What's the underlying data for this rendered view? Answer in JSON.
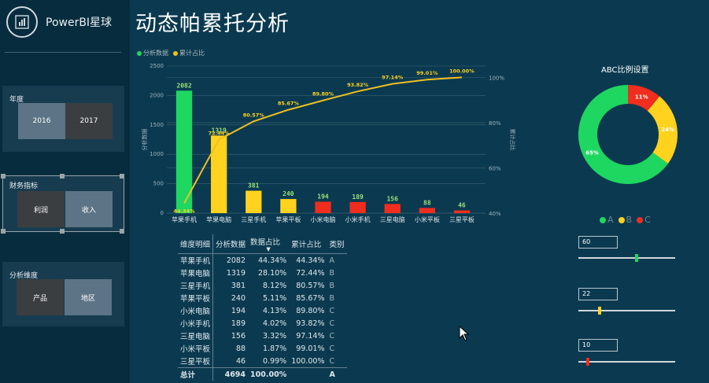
{
  "brand": "PowerBI星球",
  "page_title": "动态帕累托分析",
  "slicers": {
    "year": {
      "title": "年度",
      "options": [
        "2016",
        "2017"
      ]
    },
    "finance": {
      "title": "财务指标",
      "options": [
        "利润",
        "收入"
      ]
    },
    "dimension": {
      "title": "分析维度",
      "options": [
        "产品",
        "地区"
      ]
    }
  },
  "legend": {
    "series1": "分析数据",
    "series2": "累计占比"
  },
  "colors": {
    "A": "#1ed760",
    "B": "#ffd21e",
    "C": "#f02d1e",
    "line": "#f0c020",
    "bg": "#0b3a50"
  },
  "chart_data": {
    "type": "bar+line",
    "categories": [
      "苹果手机",
      "苹果电脑",
      "三星手机",
      "苹果平板",
      "小米电脑",
      "小米手机",
      "三星电脑",
      "小米平板",
      "三星平板"
    ],
    "series": [
      {
        "name": "分析数据",
        "values": [
          2082,
          1319,
          381,
          240,
          194,
          189,
          156,
          88,
          46
        ],
        "axis": "left"
      },
      {
        "name": "累计占比",
        "values": [
          44.34,
          72.44,
          80.57,
          85.67,
          89.8,
          93.82,
          97.14,
          99.01,
          100.0
        ],
        "axis": "right"
      }
    ],
    "classes": [
      "A",
      "B",
      "B",
      "B",
      "C",
      "C",
      "C",
      "C",
      "C"
    ],
    "ylabel": "分析数据",
    "y2label": "累计占比",
    "ylim": [
      0,
      2500
    ],
    "yticks": [
      0,
      500,
      1000,
      1500,
      2000,
      2500
    ],
    "y2lim": [
      40,
      105
    ],
    "y2ticks": [
      "40%",
      "60%",
      "80%",
      "100%"
    ],
    "grid": true
  },
  "table": {
    "headers": [
      "维度明细",
      "分析数据",
      "数据占比",
      "累计占比",
      "类别"
    ],
    "rows": [
      [
        "苹果手机",
        "2082",
        "44.34%",
        "44.34%",
        "A"
      ],
      [
        "苹果电脑",
        "1319",
        "28.10%",
        "72.44%",
        "B"
      ],
      [
        "三星手机",
        "381",
        "8.12%",
        "80.57%",
        "B"
      ],
      [
        "苹果平板",
        "240",
        "5.11%",
        "85.67%",
        "B"
      ],
      [
        "小米电脑",
        "194",
        "4.13%",
        "89.80%",
        "C"
      ],
      [
        "小米手机",
        "189",
        "4.02%",
        "93.82%",
        "C"
      ],
      [
        "三星电脑",
        "156",
        "3.32%",
        "97.14%",
        "C"
      ],
      [
        "小米平板",
        "88",
        "1.87%",
        "99.01%",
        "C"
      ],
      [
        "三星平板",
        "46",
        "0.99%",
        "100.00%",
        "C"
      ]
    ],
    "total": [
      "总计",
      "4694",
      "100.00%",
      "",
      "A"
    ]
  },
  "abc": {
    "title": "ABC比例设置",
    "donut": [
      {
        "label": "A",
        "pct": 65,
        "text": "65%"
      },
      {
        "label": "B",
        "pct": 24,
        "text": "24%"
      },
      {
        "label": "C",
        "pct": 11,
        "text": "11%"
      }
    ],
    "legend": [
      "A",
      "B",
      "C"
    ],
    "sliders": [
      {
        "value": "60",
        "fraction": 0.6
      },
      {
        "value": "22",
        "fraction": 0.22
      },
      {
        "value": "10",
        "fraction": 0.1
      }
    ]
  }
}
